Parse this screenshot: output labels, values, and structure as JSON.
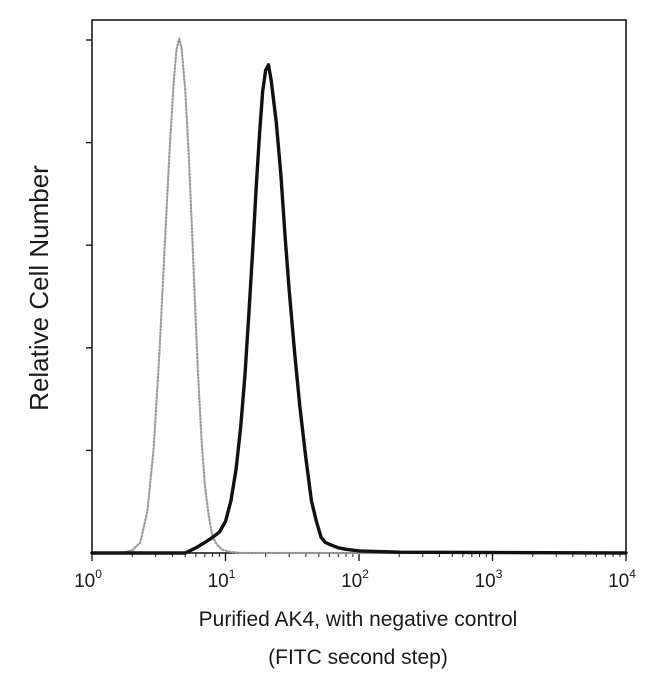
{
  "chart_data": {
    "type": "line",
    "title": "",
    "xlabel_line1": "Purified AK4, with negative control",
    "xlabel_line2": "(FITC second step)",
    "ylabel": "Relative Cell Number",
    "x_scale": "log",
    "xlim": [
      1,
      10000
    ],
    "ylim": [
      0,
      100
    ],
    "x_ticks": [
      {
        "base": "10",
        "exp": "0"
      },
      {
        "base": "10",
        "exp": "1"
      },
      {
        "base": "10",
        "exp": "2"
      },
      {
        "base": "10",
        "exp": "3"
      },
      {
        "base": "10",
        "exp": "4"
      }
    ],
    "y_tick_count": 5,
    "grid": false,
    "legend": "none",
    "series": [
      {
        "style": "dotted-gray",
        "color": "#9a9a9a",
        "x": [
          1,
          1.6,
          2.0,
          2.3,
          2.6,
          2.9,
          3.2,
          3.5,
          3.8,
          4.1,
          4.3,
          4.5,
          4.7,
          5.0,
          5.3,
          5.6,
          5.9,
          6.2,
          6.6,
          7.0,
          7.5,
          8.0,
          8.7,
          9.5,
          11,
          13,
          10000
        ],
        "y": [
          0,
          0,
          0.5,
          2,
          8,
          20,
          38,
          58,
          76,
          90,
          96,
          98,
          96,
          88,
          76,
          62,
          48,
          35,
          22,
          13,
          7,
          3,
          1.5,
          0.6,
          0.2,
          0,
          0
        ]
      },
      {
        "style": "solid-black",
        "color": "#111111",
        "x": [
          1,
          5,
          6,
          7,
          8,
          9,
          10,
          11,
          12,
          13,
          14,
          15,
          16,
          17,
          18,
          19,
          20,
          21,
          22,
          24,
          26,
          28,
          30,
          33,
          36,
          40,
          44,
          48,
          52,
          56,
          62,
          70,
          80,
          100,
          130,
          200,
          10000
        ],
        "y": [
          0,
          0,
          1,
          2,
          3,
          4,
          6,
          10,
          16,
          24,
          34,
          46,
          58,
          70,
          80,
          88,
          92,
          93,
          90,
          82,
          72,
          60,
          50,
          38,
          28,
          18,
          10,
          6,
          3,
          2,
          1.5,
          1,
          0.7,
          0.4,
          0.3,
          0.15,
          0
        ]
      }
    ]
  }
}
